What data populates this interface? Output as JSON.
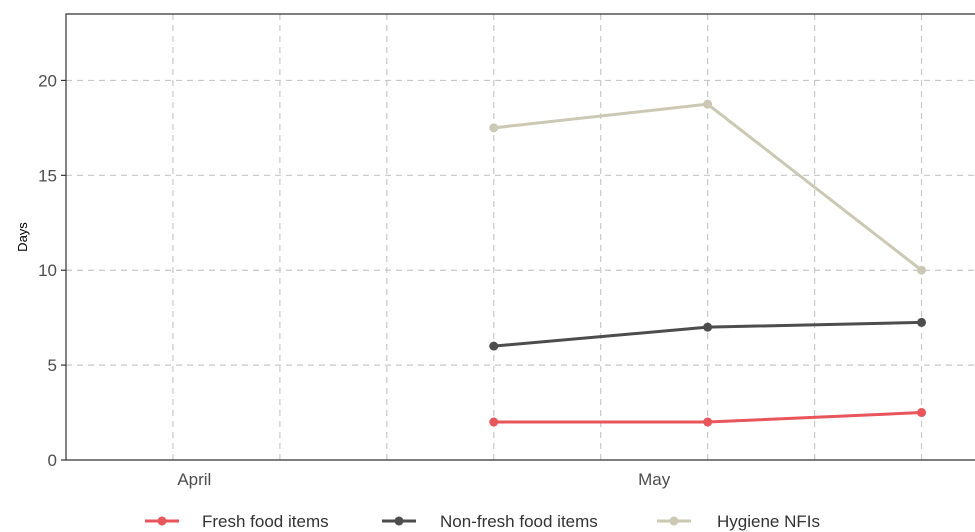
{
  "chart_data": {
    "type": "line",
    "ylabel": "Days",
    "ylim": [
      0,
      23.5
    ],
    "yticks": [
      0,
      5,
      10,
      15,
      20
    ],
    "x_domain": [
      -0.5,
      3.75
    ],
    "x_tick_labels": [
      {
        "label": "April",
        "x": 0.1
      },
      {
        "label": "May",
        "x": 2.25
      }
    ],
    "x_grid": [
      0,
      0.5,
      1,
      1.5,
      2,
      2.5,
      3,
      3.5
    ],
    "x": [
      1.5,
      2.5,
      3.5
    ],
    "series": [
      {
        "name": "Fresh food items",
        "color": "#e8555b",
        "values": [
          2,
          2,
          2.5
        ]
      },
      {
        "name": "Non-fresh food items",
        "color": "#4d4d4d",
        "values": [
          6,
          7,
          7.25
        ]
      },
      {
        "name": "Hygiene NFIs",
        "color": "#cbc8b4",
        "values": [
          17.5,
          18.75,
          10
        ]
      }
    ],
    "grid": true,
    "legend_position": "bottom"
  }
}
